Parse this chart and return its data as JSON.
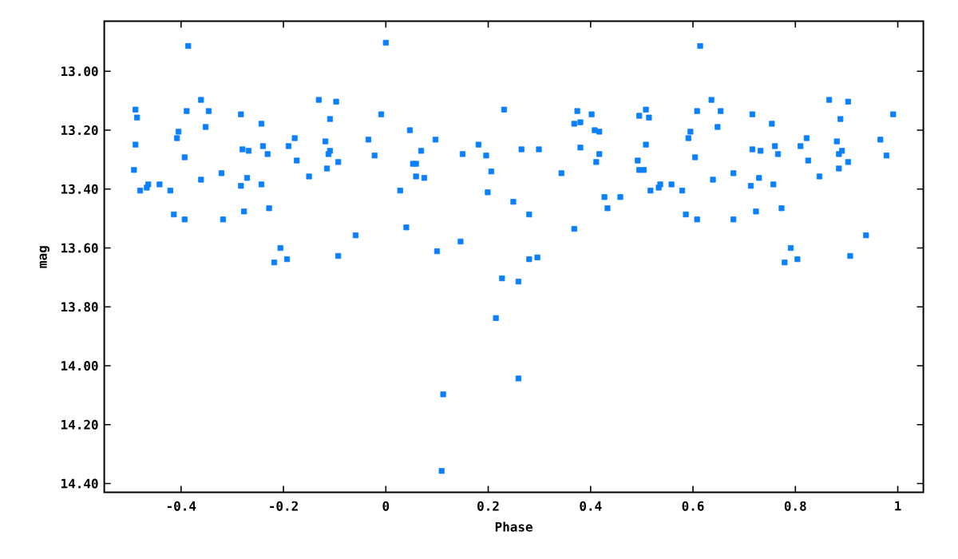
{
  "chart_data": {
    "type": "scatter",
    "xlabel": "Phase",
    "ylabel": "mag",
    "x": [
      -0.386,
      -0.489,
      -0.486,
      -0.489,
      -0.492,
      -0.48,
      -0.467,
      -0.464,
      -0.442,
      -0.421,
      -0.414,
      -0.393,
      -0.393,
      -0.389,
      -0.408,
      -0.405,
      -0.361,
      -0.346,
      -0.352,
      -0.361,
      -0.321,
      -0.318,
      -0.283,
      -0.28,
      -0.268,
      -0.283,
      -0.271,
      -0.277,
      -0.243,
      -0.24,
      -0.231,
      -0.243,
      -0.228,
      -0.206,
      -0.218,
      -0.193,
      -0.19,
      -0.178,
      -0.174,
      -0.15,
      -0.131,
      -0.097,
      -0.109,
      -0.118,
      -0.112,
      -0.109,
      -0.115,
      -0.093,
      -0.093,
      -0.059,
      -0.034,
      -0.022,
      -0.009,
      0.0,
      0.047,
      0.028,
      0.04,
      0.069,
      0.053,
      0.059,
      0.059,
      0.075,
      0.097,
      0.1,
      0.112,
      0.109,
      0.146,
      0.15,
      0.181,
      0.196,
      0.206,
      0.199,
      0.231,
      0.227,
      0.215,
      0.249,
      0.259,
      0.259,
      0.265,
      0.28,
      0.28,
      0.296,
      0.299,
      0.343,
      0.368,
      0.374,
      0.38,
      0.368,
      0.38,
      0.402,
      0.408,
      0.417,
      0.417,
      0.411,
      0.427,
      0.433,
      0.458,
      0.492,
      0.495,
      0.508,
      0.514,
      0.508,
      0.495,
      0.504,
      0.517,
      0.533,
      0.536,
      0.558,
      0.579,
      0.586,
      0.608,
      0.604,
      0.608,
      0.591,
      0.595,
      0.614,
      0.636,
      0.654,
      0.648,
      0.639,
      0.679,
      0.679,
      0.716,
      0.716,
      0.732,
      0.713,
      0.729,
      0.723,
      0.754,
      0.76,
      0.766,
      0.757,
      0.773,
      0.791,
      0.779,
      0.804,
      0.81,
      0.822,
      0.825,
      0.847,
      0.866,
      0.903,
      0.888,
      0.881,
      0.891,
      0.885,
      0.885,
      0.903,
      0.907,
      0.938,
      0.966,
      0.978,
      0.991
    ],
    "values": [
      12.914,
      13.13,
      13.157,
      13.249,
      13.335,
      13.405,
      13.395,
      13.384,
      13.384,
      13.405,
      13.486,
      13.503,
      13.292,
      13.135,
      13.227,
      13.205,
      13.097,
      13.135,
      13.189,
      13.368,
      13.346,
      13.503,
      13.146,
      13.265,
      13.27,
      13.389,
      13.362,
      13.476,
      13.178,
      13.254,
      13.281,
      13.384,
      13.465,
      13.6,
      13.649,
      13.638,
      13.254,
      13.227,
      13.303,
      13.357,
      13.097,
      13.103,
      13.162,
      13.238,
      13.281,
      13.27,
      13.33,
      13.308,
      13.627,
      13.557,
      13.232,
      13.286,
      13.146,
      12.903,
      13.2,
      13.405,
      13.53,
      13.27,
      13.314,
      13.314,
      13.357,
      13.362,
      13.232,
      13.611,
      14.097,
      14.357,
      13.578,
      13.281,
      13.249,
      13.286,
      13.34,
      13.411,
      13.13,
      13.703,
      13.838,
      13.443,
      13.714,
      14.043,
      13.265,
      13.486,
      13.638,
      13.632,
      13.265,
      13.346,
      13.178,
      13.135,
      13.173,
      13.535,
      13.259,
      13.146,
      13.2,
      13.205,
      13.281,
      13.308,
      13.427,
      13.465,
      13.427,
      13.303,
      13.151,
      13.13,
      13.157,
      13.249,
      13.335,
      13.335,
      13.405,
      13.395,
      13.384,
      13.384,
      13.405,
      13.486,
      13.503,
      13.292,
      13.135,
      13.227,
      13.205,
      12.914,
      13.097,
      13.135,
      13.189,
      13.368,
      13.346,
      13.503,
      13.146,
      13.265,
      13.27,
      13.389,
      13.362,
      13.476,
      13.178,
      13.254,
      13.281,
      13.384,
      13.465,
      13.6,
      13.649,
      13.638,
      13.254,
      13.227,
      13.303,
      13.357,
      13.097,
      13.103,
      13.162,
      13.238,
      13.27,
      13.281,
      13.33,
      13.308,
      13.627,
      13.557,
      13.232,
      13.286,
      13.146
    ],
    "color": "#0a80ff",
    "marker": "square",
    "xlim": [
      -0.55,
      1.05
    ],
    "xticks": [
      -0.4,
      -0.2,
      0,
      0.2,
      0.4,
      0.6,
      0.8,
      1
    ],
    "ylim": [
      14.43,
      12.83
    ],
    "yticks": [
      {
        "value": 13.0,
        "label": "13.00"
      },
      {
        "value": 13.2,
        "label": "13.20"
      },
      {
        "value": 13.4,
        "label": "13.40"
      },
      {
        "value": 13.6,
        "label": "13.60"
      },
      {
        "value": 13.8,
        "label": "13.80"
      },
      {
        "value": 14.0,
        "label": "14.00"
      },
      {
        "value": 14.2,
        "label": "14.20"
      },
      {
        "value": 14.4,
        "label": "14.40"
      }
    ]
  }
}
